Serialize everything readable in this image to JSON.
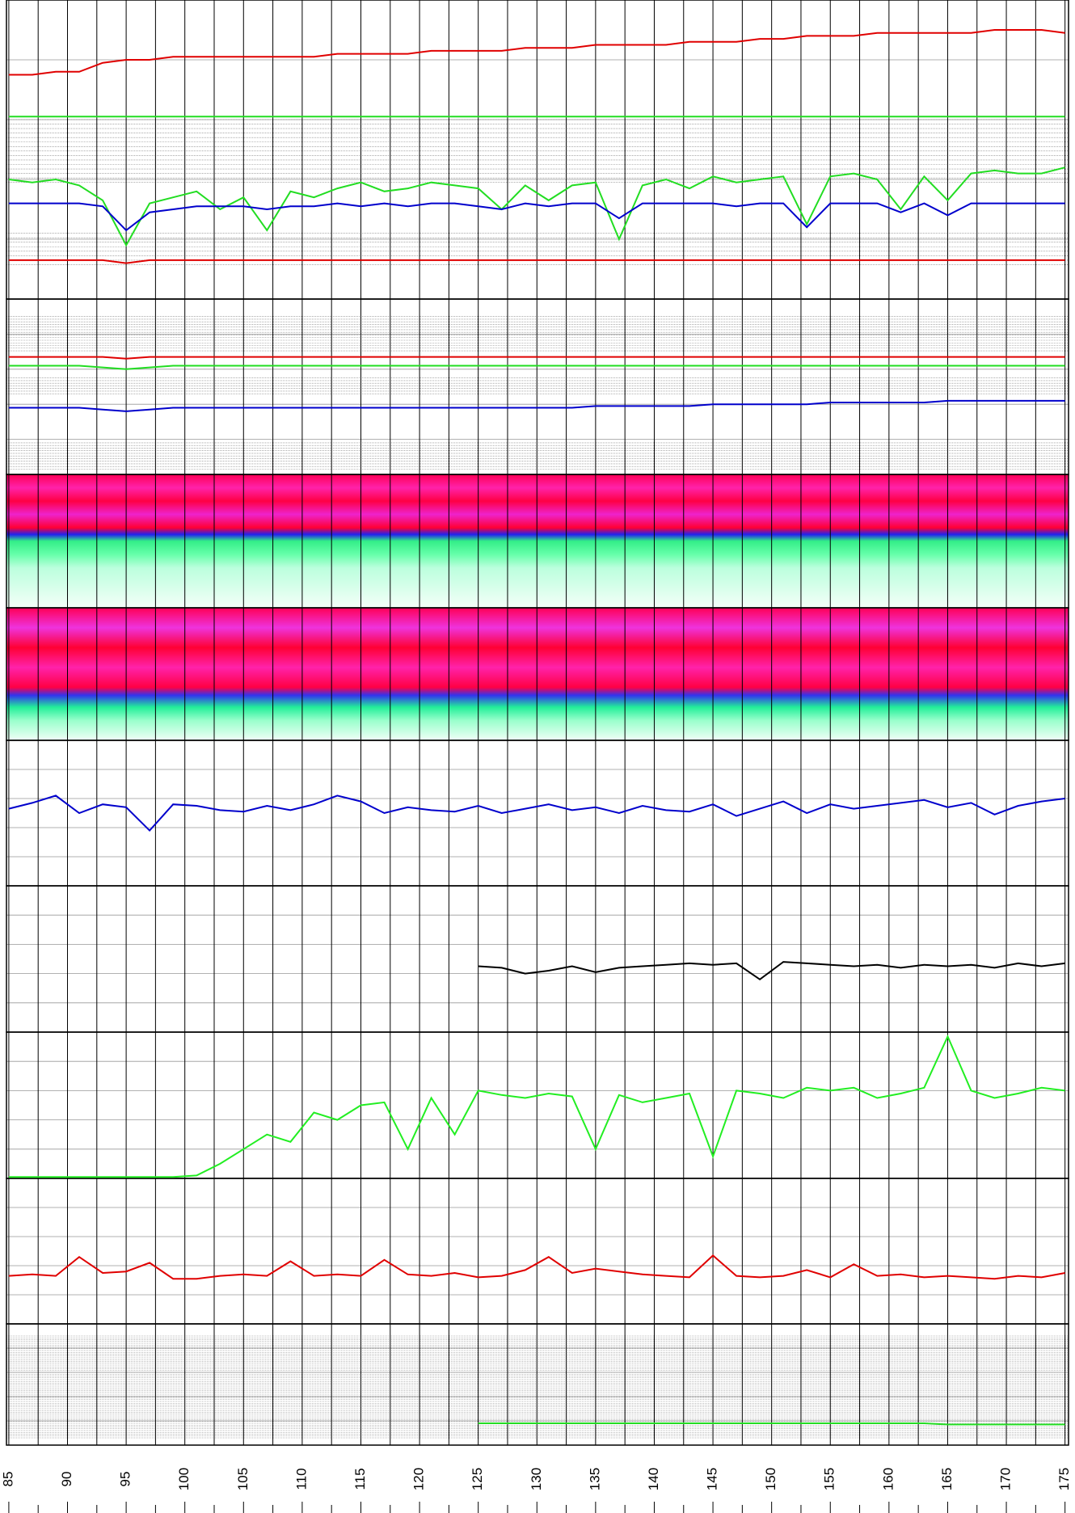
{
  "chart_data": {
    "type": "line",
    "x": [
      85,
      87,
      89,
      91,
      93,
      95,
      97,
      99,
      101,
      103,
      105,
      107,
      109,
      111,
      113,
      115,
      117,
      119,
      121,
      123,
      125,
      127,
      129,
      131,
      133,
      135,
      137,
      139,
      141,
      143,
      145,
      147,
      149,
      151,
      153,
      155,
      157,
      159,
      161,
      163,
      165,
      167,
      169,
      171,
      173,
      175
    ],
    "xlim": [
      84.8,
      175.3
    ],
    "xticks": [
      85,
      90,
      95,
      100,
      105,
      110,
      115,
      120,
      125,
      130,
      135,
      140,
      145,
      150,
      155,
      160,
      165,
      170,
      175
    ],
    "tracks": [
      {
        "ylim": [
          0,
          100
        ],
        "series": [
          {
            "color": "#e00000",
            "values": [
              75,
              75,
              76,
              76,
              79,
              80,
              80,
              81,
              81,
              81,
              81,
              81,
              81,
              81,
              82,
              82,
              82,
              82,
              83,
              83,
              83,
              83,
              84,
              84,
              84,
              85,
              85,
              85,
              85,
              86,
              86,
              86,
              87,
              87,
              88,
              88,
              88,
              89,
              89,
              89,
              89,
              89,
              90,
              90,
              90,
              89
            ]
          },
          {
            "color": "#22dd22",
            "values": [
              61,
              61,
              61,
              61,
              61,
              61,
              61,
              61,
              61,
              61,
              61,
              61,
              61,
              61,
              61,
              61,
              61,
              61,
              61,
              61,
              61,
              61,
              61,
              61,
              61,
              61,
              61,
              61,
              61,
              61,
              61,
              61,
              61,
              61,
              61,
              61,
              61,
              61,
              61,
              61,
              61,
              61,
              61,
              61,
              61,
              61
            ]
          },
          {
            "color": "#22dd22",
            "values": [
              40,
              39,
              40,
              38,
              33,
              18,
              32,
              34,
              36,
              30,
              34,
              23,
              36,
              34,
              37,
              39,
              36,
              37,
              39,
              38,
              37,
              30,
              38,
              33,
              38,
              39,
              20,
              38,
              40,
              37,
              41,
              39,
              40,
              41,
              25,
              41,
              42,
              40,
              30,
              41,
              33,
              42,
              43,
              42,
              42,
              44
            ]
          },
          {
            "color": "#0000cc",
            "values": [
              32,
              32,
              32,
              32,
              31,
              23,
              29,
              30,
              31,
              31,
              31,
              30,
              31,
              31,
              32,
              31,
              32,
              31,
              32,
              32,
              31,
              30,
              32,
              31,
              32,
              32,
              27,
              32,
              32,
              32,
              32,
              31,
              32,
              32,
              24,
              32,
              32,
              32,
              29,
              32,
              28,
              32,
              32,
              32,
              32,
              32
            ]
          },
          {
            "color": "#e00000",
            "values": [
              13,
              13,
              13,
              13,
              13,
              12,
              13,
              13,
              13,
              13,
              13,
              13,
              13,
              13,
              13,
              13,
              13,
              13,
              13,
              13,
              13,
              13,
              13,
              13,
              13,
              13,
              13,
              13,
              13,
              13,
              13,
              13,
              13,
              13,
              13,
              13,
              13,
              13,
              13,
              13,
              13,
              13,
              13,
              13,
              13,
              13
            ]
          }
        ]
      },
      {
        "ylim": [
          0,
          100
        ],
        "series": [
          {
            "color": "#e00000",
            "values": [
              67,
              67,
              67,
              67,
              67,
              66,
              67,
              67,
              67,
              67,
              67,
              67,
              67,
              67,
              67,
              67,
              67,
              67,
              67,
              67,
              67,
              67,
              67,
              67,
              67,
              67,
              67,
              67,
              67,
              67,
              67,
              67,
              67,
              67,
              67,
              67,
              67,
              67,
              67,
              67,
              67,
              67,
              67,
              67,
              67,
              67
            ]
          },
          {
            "color": "#22dd22",
            "values": [
              62,
              62,
              62,
              62,
              61,
              60,
              61,
              62,
              62,
              62,
              62,
              62,
              62,
              62,
              62,
              62,
              62,
              62,
              62,
              62,
              62,
              62,
              62,
              62,
              62,
              62,
              62,
              62,
              62,
              62,
              62,
              62,
              62,
              62,
              62,
              62,
              62,
              62,
              62,
              62,
              62,
              62,
              62,
              62,
              62,
              62
            ]
          },
          {
            "color": "#0000cc",
            "values": [
              38,
              38,
              38,
              38,
              37,
              36,
              37,
              38,
              38,
              38,
              38,
              38,
              38,
              38,
              38,
              38,
              38,
              38,
              38,
              38,
              38,
              38,
              38,
              38,
              38,
              39,
              39,
              39,
              39,
              39,
              40,
              40,
              40,
              40,
              40,
              41,
              41,
              41,
              41,
              41,
              42,
              42,
              42,
              42,
              42,
              42
            ]
          }
        ]
      },
      {
        "ylim": [
          0,
          100
        ],
        "series": [
          {
            "color": "#0000cc",
            "values": [
              53,
              57,
              62,
              50,
              56,
              54,
              38,
              56,
              55,
              52,
              51,
              55,
              52,
              56,
              62,
              58,
              50,
              54,
              52,
              51,
              55,
              50,
              53,
              56,
              52,
              54,
              50,
              55,
              52,
              51,
              56,
              48,
              53,
              58,
              50,
              56,
              53,
              55,
              57,
              59,
              54,
              57,
              49,
              55,
              58,
              60
            ]
          }
        ]
      },
      {
        "ylim": [
          0,
          100
        ],
        "series": [
          {
            "color": "#000000",
            "values": [
              null,
              null,
              null,
              null,
              null,
              null,
              null,
              null,
              null,
              null,
              null,
              null,
              null,
              null,
              null,
              null,
              null,
              null,
              null,
              null,
              45,
              44,
              40,
              42,
              45,
              41,
              44,
              45,
              46,
              47,
              46,
              47,
              36,
              48,
              47,
              46,
              45,
              46,
              44,
              46,
              45,
              46,
              44,
              47,
              45,
              47
            ]
          }
        ]
      },
      {
        "ylim": [
          0,
          100
        ],
        "series": [
          {
            "color": "#22ee22",
            "values": [
              1,
              1,
              1,
              1,
              1,
              1,
              1,
              1,
              2,
              10,
              20,
              30,
              25,
              45,
              40,
              50,
              52,
              20,
              55,
              30,
              60,
              57,
              55,
              58,
              56,
              20,
              57,
              52,
              55,
              58,
              15,
              60,
              58,
              55,
              62,
              60,
              62,
              55,
              58,
              62,
              97,
              60,
              55,
              58,
              62,
              60
            ]
          }
        ]
      },
      {
        "ylim": [
          0,
          100
        ],
        "series": [
          {
            "color": "#e00000",
            "values": [
              33,
              34,
              33,
              46,
              35,
              36,
              42,
              31,
              31,
              33,
              34,
              33,
              43,
              33,
              34,
              33,
              44,
              34,
              33,
              35,
              32,
              33,
              37,
              46,
              35,
              38,
              36,
              34,
              33,
              32,
              47,
              33,
              32,
              33,
              37,
              32,
              41,
              33,
              34,
              32,
              33,
              32,
              31,
              33,
              32,
              35
            ]
          }
        ]
      },
      {
        "ylim": [
          0,
          100
        ],
        "series": [
          {
            "color": "#22dd22",
            "values": [
              null,
              null,
              null,
              null,
              null,
              null,
              null,
              null,
              null,
              null,
              null,
              null,
              null,
              null,
              null,
              null,
              null,
              null,
              null,
              null,
              18,
              18,
              18,
              18,
              18,
              18,
              18,
              18,
              18,
              18,
              18,
              18,
              18,
              18,
              18,
              18,
              18,
              18,
              18,
              18,
              17,
              17,
              17,
              17,
              17,
              17
            ]
          }
        ]
      }
    ]
  }
}
